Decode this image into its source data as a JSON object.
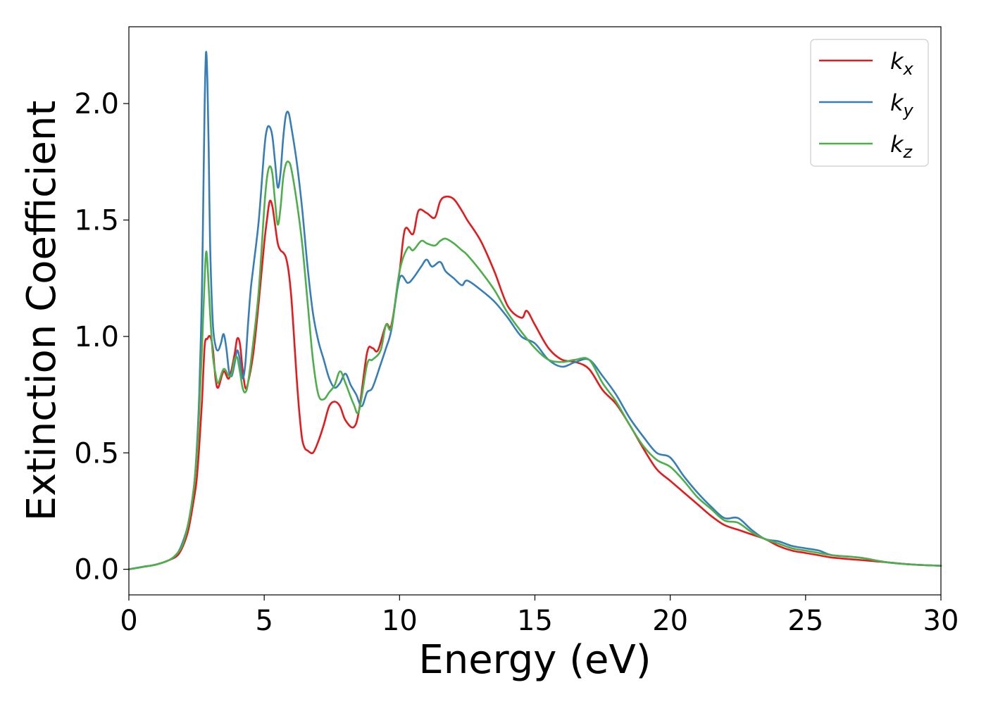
{
  "chart_data": {
    "type": "line",
    "title": "",
    "xlabel": "Energy (eV)",
    "ylabel": "Extinction Coefficient",
    "xlim": [
      0,
      30
    ],
    "ylim": [
      -0.11,
      2.33
    ],
    "xticks": [
      0,
      5,
      10,
      15,
      20,
      25,
      30
    ],
    "yticks": [
      0.0,
      0.5,
      1.0,
      1.5,
      2.0
    ],
    "xtick_labels": [
      "0",
      "5",
      "10",
      "15",
      "20",
      "25",
      "30"
    ],
    "ytick_labels": [
      "0.0",
      "0.5",
      "1.0",
      "1.5",
      "2.0"
    ],
    "grid": false,
    "legend_position": "top-right",
    "series": [
      {
        "name": "k",
        "subscript": "x",
        "color": "#e41a1c",
        "x": [
          0,
          0.5,
          1.0,
          1.5,
          1.8,
          2.0,
          2.2,
          2.4,
          2.5,
          2.6,
          2.7,
          2.8,
          2.9,
          3.0,
          3.1,
          3.2,
          3.3,
          3.5,
          3.7,
          3.9,
          4.0,
          4.1,
          4.2,
          4.3,
          4.4,
          4.6,
          4.8,
          5.0,
          5.1,
          5.2,
          5.3,
          5.4,
          5.5,
          5.6,
          5.7,
          5.8,
          5.9,
          6.0,
          6.1,
          6.2,
          6.3,
          6.4,
          6.5,
          6.6,
          6.8,
          7.0,
          7.2,
          7.4,
          7.6,
          7.8,
          8.0,
          8.3,
          8.5,
          8.8,
          9.0,
          9.2,
          9.5,
          9.7,
          10.0,
          10.2,
          10.5,
          10.7,
          11.0,
          11.3,
          11.5,
          11.7,
          12.0,
          12.3,
          12.5,
          13.0,
          13.5,
          14.0,
          14.5,
          14.7,
          15.0,
          15.5,
          16.0,
          16.5,
          17.0,
          17.5,
          18.0,
          18.5,
          19.0,
          19.5,
          20.0,
          20.5,
          21.0,
          21.5,
          22.0,
          22.5,
          23.0,
          23.5,
          24.0,
          24.5,
          25.0,
          25.5,
          26.0,
          27.0,
          28.0,
          29.0,
          30.0
        ],
        "values": [
          0.0,
          0.01,
          0.02,
          0.04,
          0.06,
          0.1,
          0.17,
          0.3,
          0.38,
          0.53,
          0.72,
          0.96,
          0.99,
          1.0,
          0.95,
          0.82,
          0.78,
          0.85,
          0.82,
          0.92,
          0.99,
          0.97,
          0.86,
          0.78,
          0.8,
          0.93,
          1.15,
          1.4,
          1.5,
          1.58,
          1.56,
          1.48,
          1.4,
          1.37,
          1.36,
          1.34,
          1.28,
          1.17,
          1.0,
          0.82,
          0.67,
          0.56,
          0.52,
          0.51,
          0.5,
          0.55,
          0.62,
          0.7,
          0.72,
          0.7,
          0.64,
          0.61,
          0.68,
          0.93,
          0.95,
          0.94,
          1.05,
          1.05,
          1.28,
          1.46,
          1.44,
          1.54,
          1.53,
          1.51,
          1.58,
          1.6,
          1.59,
          1.54,
          1.5,
          1.41,
          1.28,
          1.13,
          1.08,
          1.11,
          1.05,
          0.95,
          0.9,
          0.89,
          0.86,
          0.77,
          0.71,
          0.62,
          0.52,
          0.43,
          0.38,
          0.33,
          0.28,
          0.23,
          0.19,
          0.17,
          0.15,
          0.13,
          0.1,
          0.08,
          0.07,
          0.06,
          0.05,
          0.04,
          0.03,
          0.02,
          0.015
        ]
      },
      {
        "name": "k",
        "subscript": "y",
        "color": "#377eb8",
        "x": [
          0,
          0.5,
          1.0,
          1.5,
          1.8,
          2.0,
          2.2,
          2.4,
          2.5,
          2.6,
          2.7,
          2.75,
          2.8,
          2.85,
          2.9,
          2.95,
          3.0,
          3.1,
          3.2,
          3.3,
          3.4,
          3.5,
          3.6,
          3.7,
          3.8,
          3.9,
          4.0,
          4.1,
          4.2,
          4.3,
          4.4,
          4.5,
          4.6,
          4.8,
          5.0,
          5.1,
          5.2,
          5.3,
          5.4,
          5.5,
          5.6,
          5.7,
          5.8,
          5.9,
          6.0,
          6.2,
          6.4,
          6.6,
          6.8,
          7.0,
          7.2,
          7.4,
          7.6,
          7.8,
          8.0,
          8.2,
          8.4,
          8.6,
          8.8,
          9.0,
          9.3,
          9.5,
          9.7,
          10.0,
          10.3,
          10.5,
          10.8,
          11.0,
          11.2,
          11.5,
          11.7,
          12.0,
          12.3,
          12.5,
          13.0,
          13.5,
          14.0,
          14.5,
          15.0,
          15.5,
          16.0,
          16.5,
          17.0,
          17.5,
          18.0,
          18.5,
          19.0,
          19.5,
          20.0,
          20.5,
          21.0,
          21.5,
          22.0,
          22.5,
          23.0,
          23.5,
          24.0,
          24.5,
          25.0,
          25.5,
          26.0,
          27.0,
          28.0,
          29.0,
          30.0
        ],
        "values": [
          0.0,
          0.01,
          0.02,
          0.04,
          0.07,
          0.12,
          0.2,
          0.35,
          0.5,
          0.75,
          1.2,
          1.6,
          2.0,
          2.22,
          2.1,
          1.8,
          1.4,
          1.06,
          0.96,
          0.94,
          0.97,
          1.01,
          0.95,
          0.85,
          0.83,
          0.88,
          0.94,
          0.9,
          0.82,
          0.88,
          1.05,
          1.2,
          1.3,
          1.5,
          1.8,
          1.89,
          1.9,
          1.86,
          1.75,
          1.64,
          1.7,
          1.85,
          1.95,
          1.96,
          1.9,
          1.75,
          1.55,
          1.3,
          1.1,
          0.98,
          0.9,
          0.82,
          0.78,
          0.8,
          0.84,
          0.79,
          0.75,
          0.7,
          0.76,
          0.78,
          0.88,
          0.95,
          1.03,
          1.25,
          1.23,
          1.25,
          1.3,
          1.33,
          1.3,
          1.32,
          1.28,
          1.25,
          1.22,
          1.24,
          1.2,
          1.15,
          1.08,
          1.0,
          0.97,
          0.9,
          0.87,
          0.89,
          0.9,
          0.83,
          0.75,
          0.65,
          0.57,
          0.5,
          0.48,
          0.4,
          0.33,
          0.27,
          0.22,
          0.22,
          0.17,
          0.13,
          0.12,
          0.1,
          0.09,
          0.08,
          0.06,
          0.05,
          0.03,
          0.02,
          0.015
        ]
      },
      {
        "name": "k",
        "subscript": "z",
        "color": "#4daf4a",
        "x": [
          0,
          0.5,
          1.0,
          1.5,
          1.8,
          2.0,
          2.2,
          2.4,
          2.5,
          2.6,
          2.7,
          2.8,
          2.85,
          2.9,
          3.0,
          3.1,
          3.2,
          3.3,
          3.5,
          3.7,
          3.8,
          3.9,
          4.0,
          4.1,
          4.2,
          4.3,
          4.4,
          4.6,
          4.8,
          5.0,
          5.1,
          5.2,
          5.3,
          5.4,
          5.5,
          5.6,
          5.7,
          5.8,
          5.9,
          6.0,
          6.2,
          6.4,
          6.6,
          6.8,
          7.0,
          7.2,
          7.4,
          7.6,
          7.8,
          8.0,
          8.3,
          8.5,
          8.8,
          9.0,
          9.3,
          9.5,
          9.7,
          10.0,
          10.3,
          10.5,
          10.8,
          11.0,
          11.3,
          11.5,
          11.7,
          12.0,
          12.3,
          12.5,
          13.0,
          13.5,
          14.0,
          14.5,
          15.0,
          15.5,
          16.0,
          16.5,
          17.0,
          17.5,
          18.0,
          18.5,
          19.0,
          19.5,
          20.0,
          20.5,
          21.0,
          21.5,
          22.0,
          22.5,
          23.0,
          23.5,
          24.0,
          24.5,
          25.0,
          25.5,
          26.0,
          27.0,
          28.0,
          29.0,
          30.0
        ],
        "values": [
          0.0,
          0.01,
          0.02,
          0.04,
          0.07,
          0.11,
          0.2,
          0.35,
          0.48,
          0.68,
          0.95,
          1.25,
          1.36,
          1.32,
          1.1,
          0.92,
          0.84,
          0.8,
          0.86,
          0.83,
          0.84,
          0.9,
          0.91,
          0.85,
          0.78,
          0.76,
          0.8,
          0.98,
          1.2,
          1.55,
          1.68,
          1.73,
          1.7,
          1.58,
          1.48,
          1.55,
          1.68,
          1.74,
          1.75,
          1.72,
          1.58,
          1.4,
          1.15,
          0.9,
          0.75,
          0.73,
          0.76,
          0.79,
          0.85,
          0.8,
          0.71,
          0.68,
          0.88,
          0.9,
          0.94,
          1.05,
          1.04,
          1.28,
          1.38,
          1.37,
          1.41,
          1.4,
          1.39,
          1.41,
          1.42,
          1.4,
          1.37,
          1.35,
          1.28,
          1.2,
          1.1,
          1.02,
          0.95,
          0.9,
          0.89,
          0.9,
          0.9,
          0.8,
          0.72,
          0.62,
          0.53,
          0.47,
          0.44,
          0.38,
          0.31,
          0.26,
          0.21,
          0.2,
          0.16,
          0.13,
          0.11,
          0.09,
          0.08,
          0.07,
          0.06,
          0.05,
          0.03,
          0.02,
          0.015
        ]
      }
    ]
  }
}
